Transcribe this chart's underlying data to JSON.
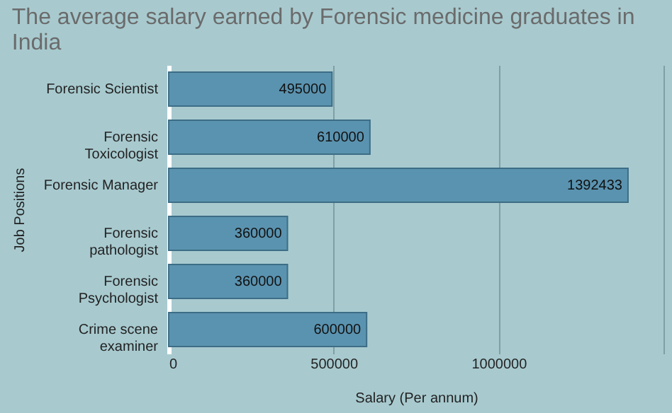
{
  "chart_data": {
    "type": "bar",
    "orientation": "horizontal",
    "title": "The average salary earned by Forensic medicine graduates in India",
    "xlabel": "Salary (Per annum)",
    "ylabel": "Job Positions",
    "categories": [
      "Forensic Scientist",
      "Forensic Toxicologist",
      "Forensic Manager",
      "Forensic pathologist",
      "Forensic Psychologist",
      "Crime scene examiner"
    ],
    "values": [
      495000,
      610000,
      1392433,
      360000,
      360000,
      600000
    ],
    "color": "#5a93b0",
    "xlim": [
      0,
      1500000
    ],
    "xticks": [
      0,
      500000,
      1000000,
      {
        "value": 1500000,
        "label": null
      }
    ],
    "grid": "x",
    "data_labels": true
  }
}
